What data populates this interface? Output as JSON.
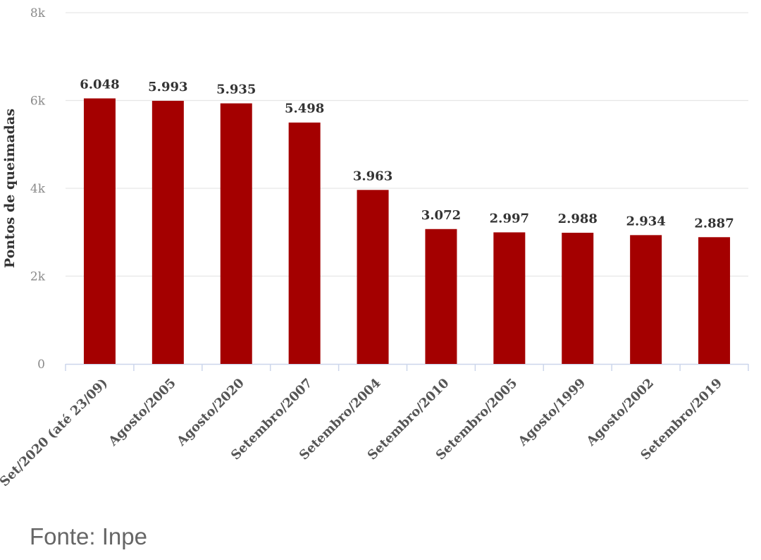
{
  "chart_data": {
    "type": "bar",
    "ylabel": "Pontos de queimadas",
    "ylim": [
      0,
      8000
    ],
    "yticks": [
      {
        "value": 0,
        "label": "0"
      },
      {
        "value": 2000,
        "label": "2k"
      },
      {
        "value": 4000,
        "label": "4k"
      },
      {
        "value": 6000,
        "label": "6k"
      },
      {
        "value": 8000,
        "label": "8k"
      }
    ],
    "grid": true,
    "bar_color": "#a40000",
    "categories": [
      "Set/2020 (até 23/09)",
      "Agosto/2005",
      "Agosto/2020",
      "Setembro/2007",
      "Setembro/2004",
      "Setembro/2010",
      "Setembro/2005",
      "Agosto/1999",
      "Agosto/2002",
      "Setembro/2019"
    ],
    "values": [
      6048,
      5993,
      5935,
      5498,
      3963,
      3072,
      2997,
      2988,
      2934,
      2887
    ],
    "value_labels": [
      "6.048",
      "5.993",
      "5.935",
      "5.498",
      "3.963",
      "3.072",
      "2.997",
      "2.988",
      "2.934",
      "2.887"
    ]
  },
  "source": "Fonte: Inpe"
}
